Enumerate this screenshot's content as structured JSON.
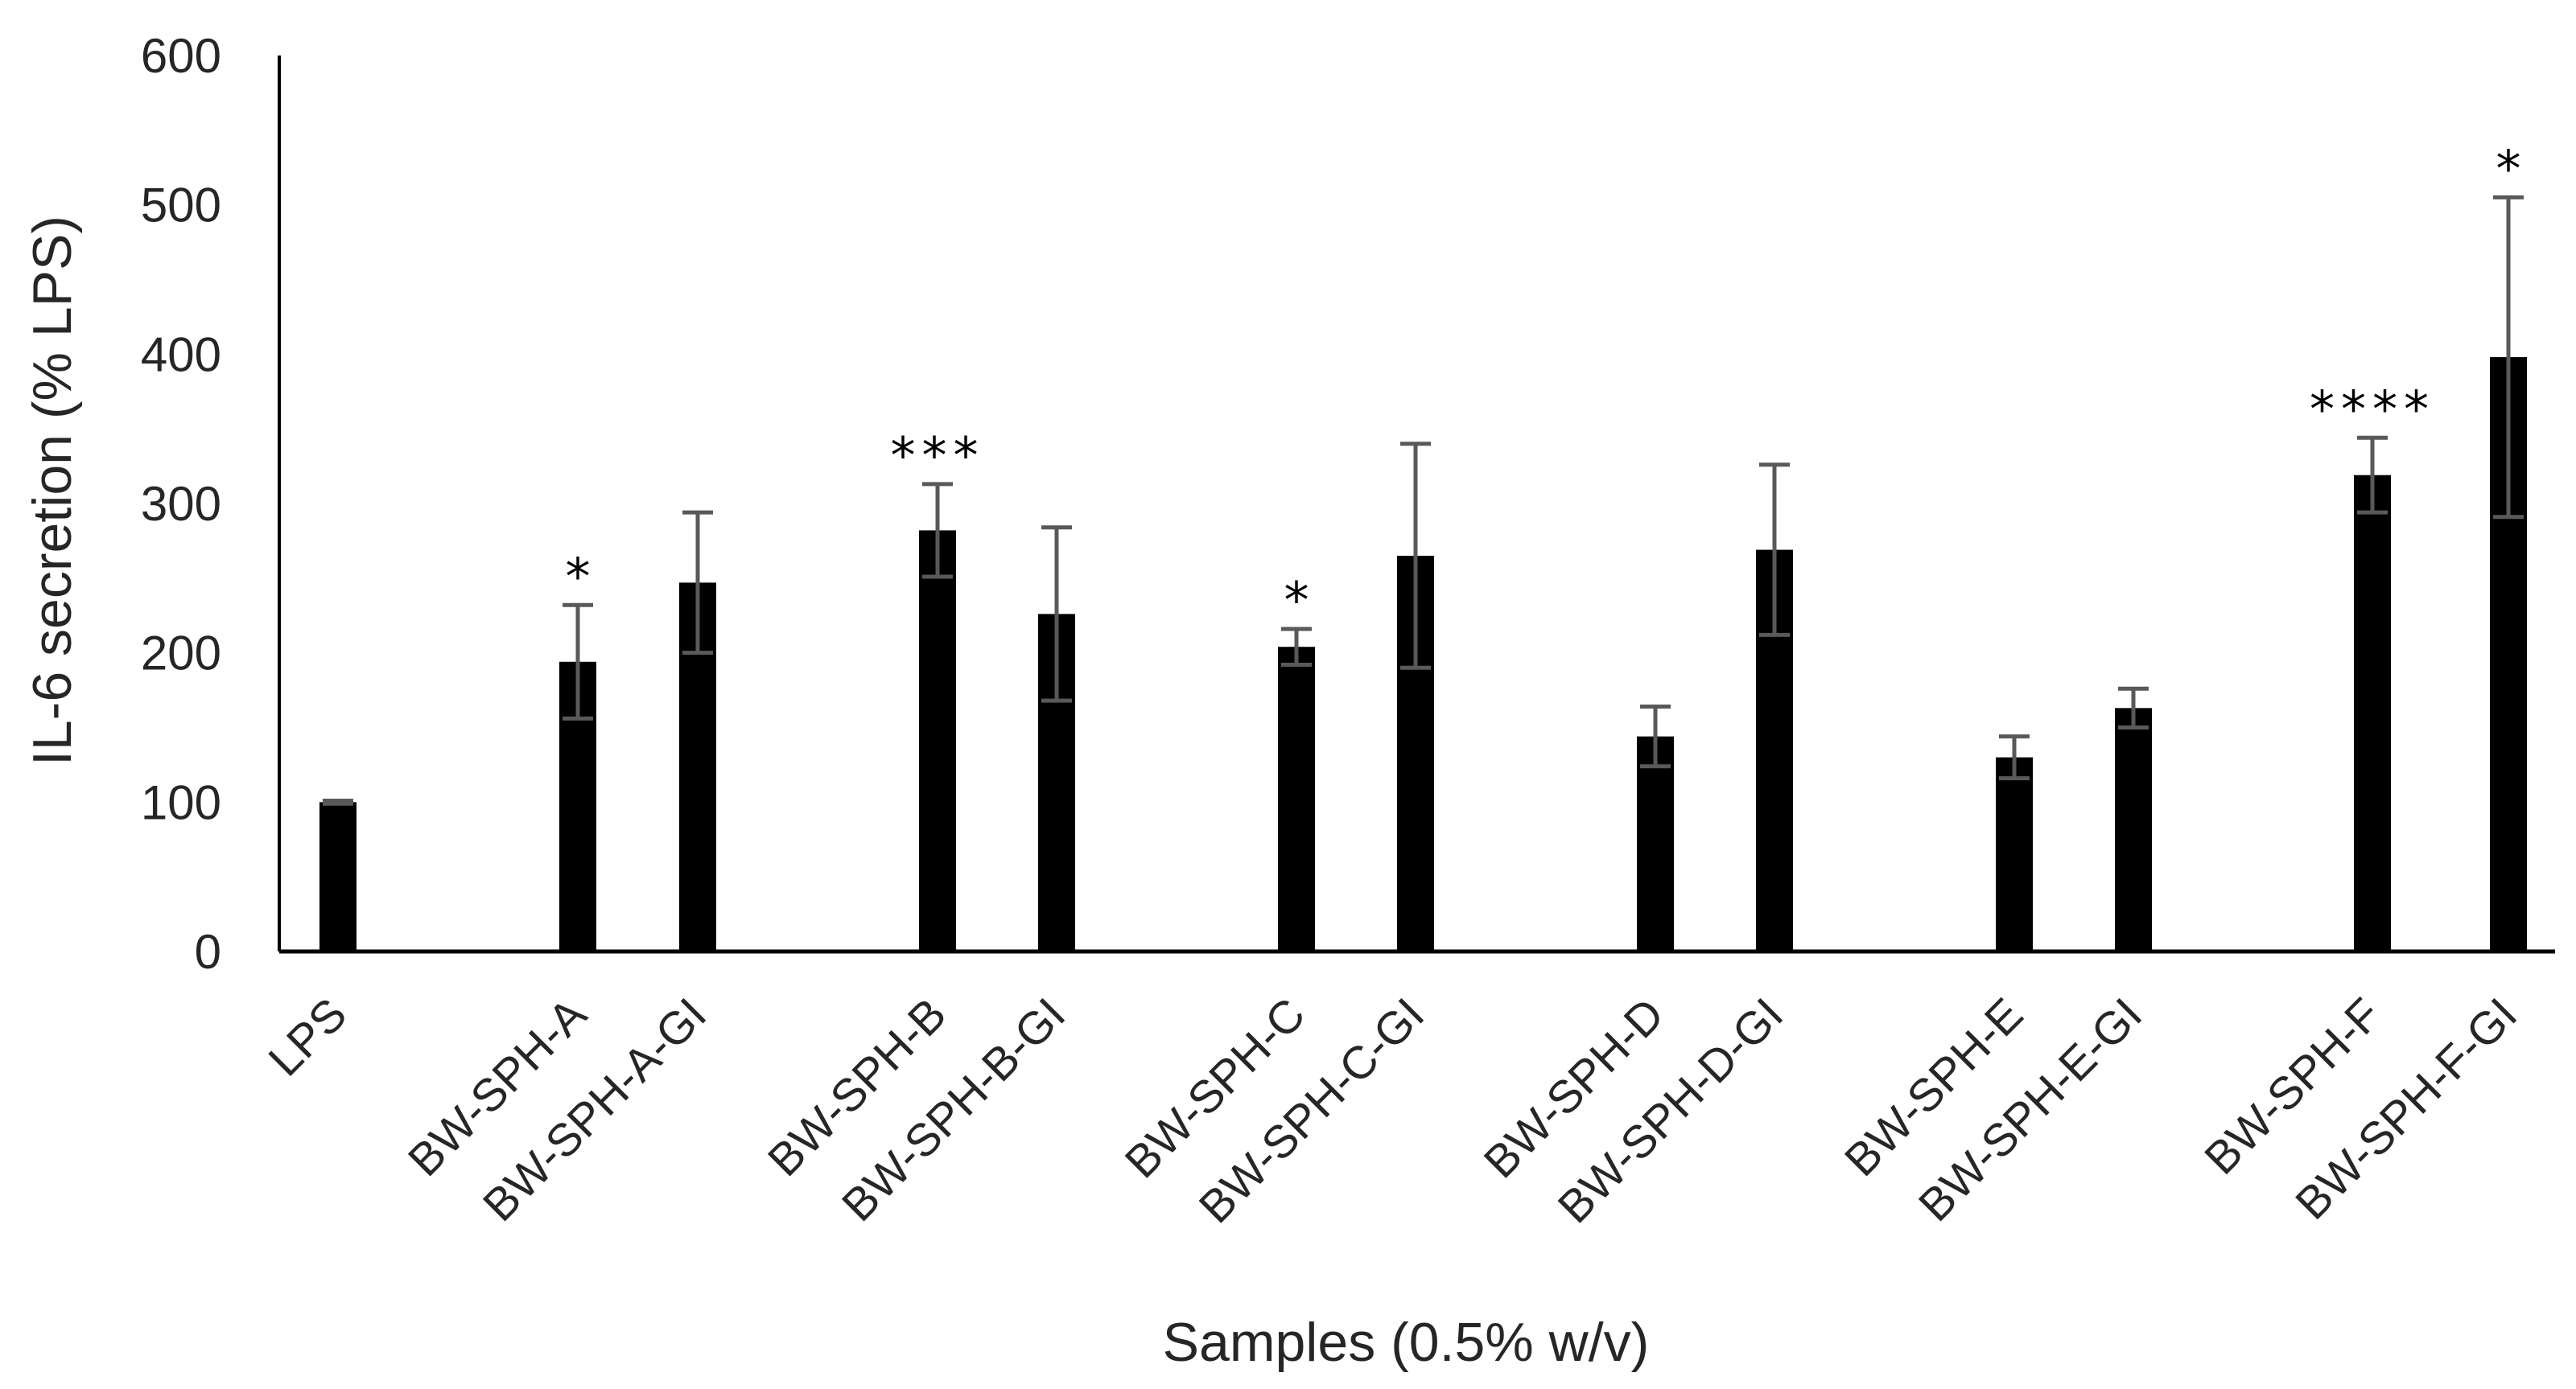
{
  "chart_data": {
    "type": "bar",
    "title": "",
    "xlabel": "Samples (0.5% w/v)",
    "ylabel": "IL-6 secretion (% LPS)",
    "ylim": [
      0,
      600
    ],
    "yticks": [
      0,
      100,
      200,
      300,
      400,
      500,
      600
    ],
    "grid": false,
    "legend": null,
    "categories": [
      "LPS",
      "BW-SPH-A",
      "BW-SPH-A-GI",
      "BW-SPH-B",
      "BW-SPH-B-GI",
      "BW-SPH-C",
      "BW-SPH-C-GI",
      "BW-SPH-D",
      "BW-SPH-D-GI",
      "BW-SPH-E",
      "BW-SPH-E-GI",
      "BW-SPH-F",
      "BW-SPH-F-GI"
    ],
    "values": [
      100,
      194,
      247,
      282,
      226,
      204,
      265,
      144,
      269,
      130,
      163,
      319,
      398
    ],
    "errors": [
      1,
      38,
      47,
      31,
      58,
      12,
      75,
      20,
      57,
      14,
      13,
      25,
      107
    ],
    "significance": [
      "",
      "*",
      "",
      "***",
      "",
      "*",
      "",
      "",
      "",
      "",
      "",
      "****",
      "*"
    ],
    "bar_color": "#000000",
    "error_bar_color": "#595959"
  }
}
